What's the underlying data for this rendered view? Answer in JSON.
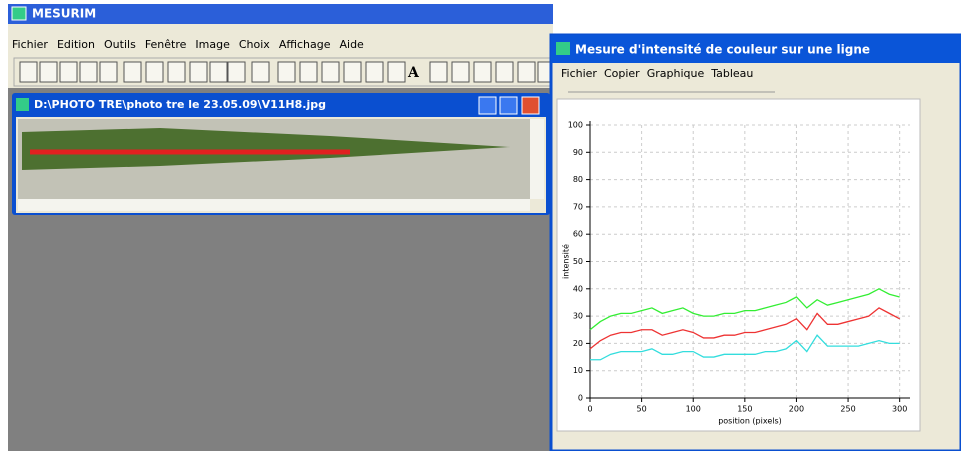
{
  "window": {
    "title": "MESURIM",
    "menu": [
      "Fichier",
      "Edition",
      "Outils",
      "Fenêtre",
      "Image",
      "Choix",
      "Affichage",
      "Aide"
    ],
    "toolbar_text": "A"
  },
  "child_window": {
    "title": "D:\\PHOTO TRE\\photo tre le 23.05.09\\V11H8.jpg"
  },
  "chart_window": {
    "title": "Mesure d'intensité de couleur sur une ligne",
    "menu": [
      "Fichier",
      "Copier",
      "Graphique",
      "Tableau"
    ]
  },
  "chart_data": {
    "type": "line",
    "x_label": "position (pixels)",
    "y_label": "intensité",
    "x": [
      0,
      10,
      20,
      30,
      40,
      50,
      60,
      70,
      80,
      90,
      100,
      110,
      120,
      130,
      140,
      150,
      160,
      170,
      180,
      190,
      200,
      210,
      220,
      230,
      240,
      250,
      260,
      270,
      280,
      290,
      300
    ],
    "series": [
      {
        "color": "#33ee33",
        "values": [
          25,
          28,
          30,
          31,
          31,
          32,
          33,
          31,
          32,
          33,
          31,
          30,
          30,
          31,
          31,
          32,
          32,
          33,
          34,
          35,
          37,
          33,
          36,
          34,
          35,
          36,
          37,
          38,
          40,
          38,
          37
        ]
      },
      {
        "color": "#ee3333",
        "values": [
          18,
          21,
          23,
          24,
          24,
          25,
          25,
          23,
          24,
          25,
          24,
          22,
          22,
          23,
          23,
          24,
          24,
          25,
          26,
          27,
          29,
          25,
          31,
          27,
          27,
          28,
          29,
          30,
          33,
          31,
          29
        ]
      },
      {
        "color": "#33dddd",
        "values": [
          14,
          14,
          16,
          17,
          17,
          17,
          18,
          16,
          16,
          17,
          17,
          15,
          15,
          16,
          16,
          16,
          16,
          17,
          17,
          18,
          21,
          17,
          23,
          19,
          19,
          19,
          19,
          20,
          21,
          20,
          20
        ]
      }
    ],
    "xlim": [
      0,
      310
    ],
    "ylim": [
      0,
      100
    ],
    "xticks": [
      0,
      50,
      100,
      150,
      200,
      250,
      300
    ],
    "yticks": [
      0,
      10,
      20,
      30,
      40,
      50,
      60,
      70,
      80,
      90,
      100
    ],
    "grid": true
  }
}
